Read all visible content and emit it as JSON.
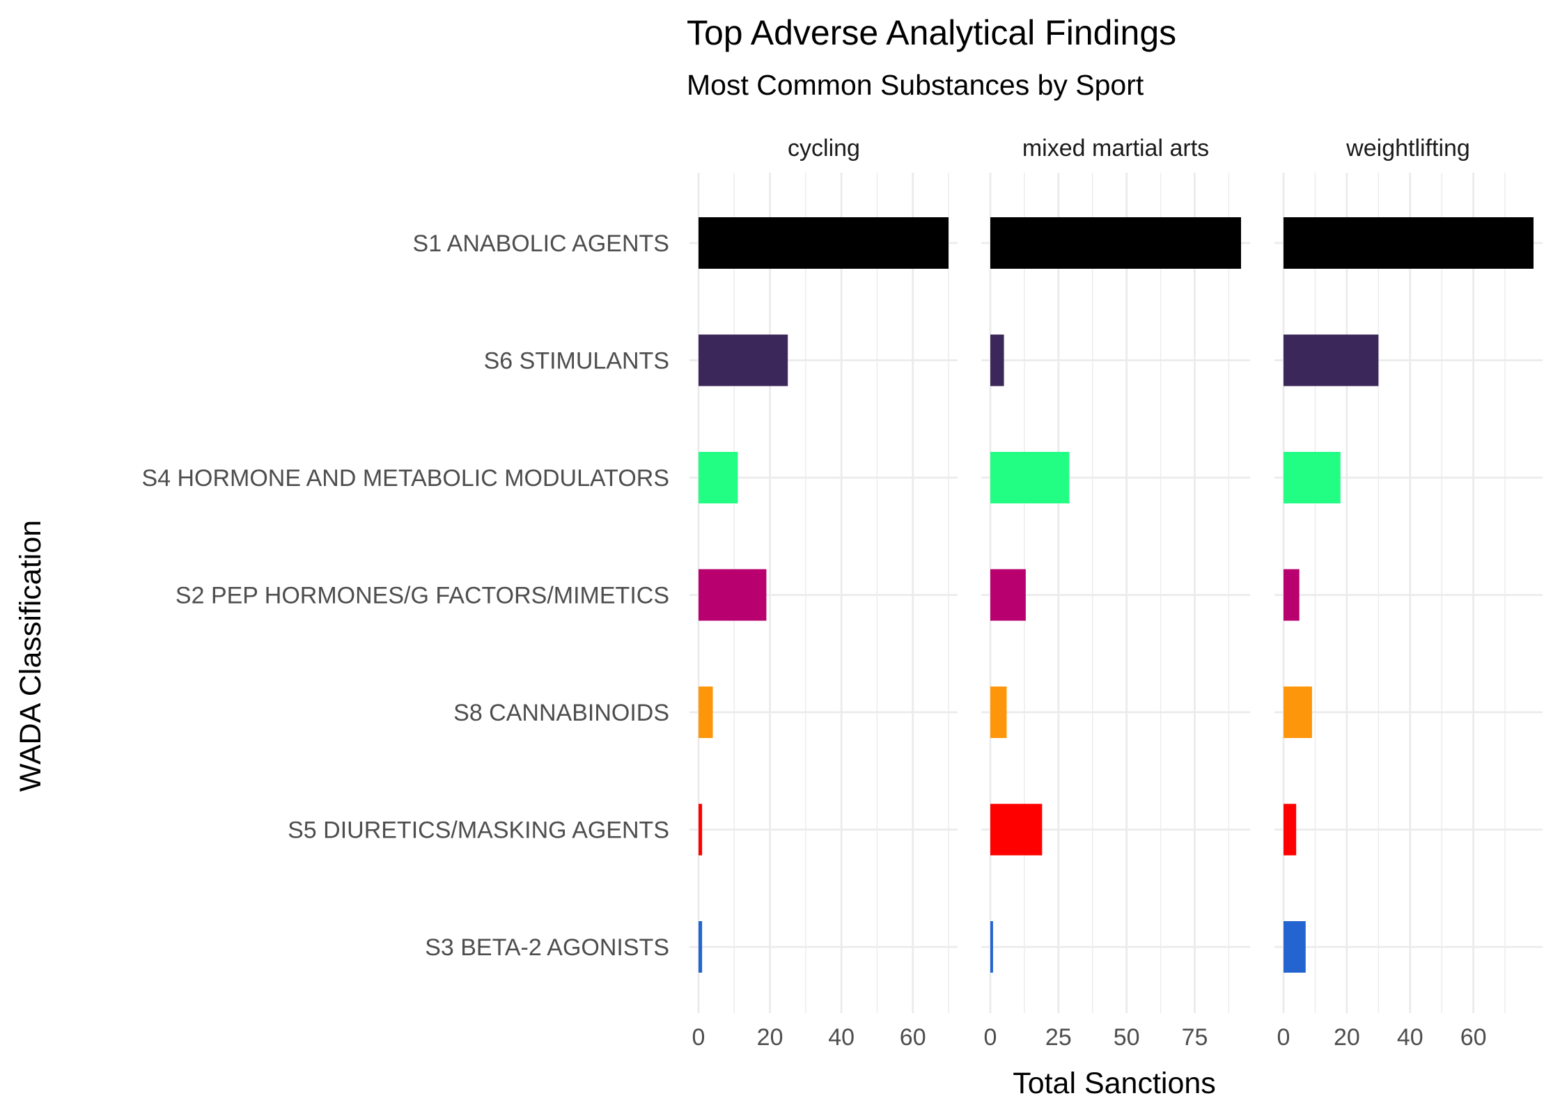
{
  "chart_data": {
    "type": "bar",
    "orientation": "horizontal",
    "title": "Top Adverse Analytical Findings",
    "subtitle": "Most Common Substances by Sport",
    "xlabel": "Total Sanctions",
    "ylabel": "WADA Classification",
    "categories": [
      "S1 ANABOLIC AGENTS",
      "S6 STIMULANTS",
      "S4 HORMONE AND METABOLIC MODULATORS",
      "S2 PEP HORMONES/G FACTORS/MIMETICS",
      "S8 CANNABINOIDS",
      "S5 DIURETICS/MASKING AGENTS",
      "S3 BETA-2 AGONISTS"
    ],
    "colors": [
      "#000000",
      "#3b2759",
      "#22fd84",
      "#b8006e",
      "#fd960a",
      "#ff0000",
      "#2464d0"
    ],
    "grid": true,
    "legend": "none",
    "facets": [
      {
        "name": "cycling",
        "values": [
          70,
          25,
          11,
          19,
          4,
          1,
          1
        ],
        "xlim": [
          0,
          70
        ],
        "ticks": [
          0,
          20,
          40,
          60
        ],
        "tick_labels": [
          "0",
          "20",
          "40",
          "60"
        ]
      },
      {
        "name": "mixed martial arts",
        "values": [
          92,
          5,
          29,
          13,
          6,
          19,
          1
        ],
        "xlim": [
          0,
          92
        ],
        "ticks": [
          0,
          25,
          50,
          75
        ],
        "tick_labels": [
          "0",
          "25",
          "50",
          "75"
        ]
      },
      {
        "name": "weightlifting",
        "values": [
          79,
          30,
          18,
          5,
          9,
          4,
          7
        ],
        "xlim": [
          0,
          79
        ],
        "ticks": [
          0,
          20,
          40,
          60
        ],
        "tick_labels": [
          "0",
          "20",
          "40",
          "60"
        ]
      }
    ]
  }
}
